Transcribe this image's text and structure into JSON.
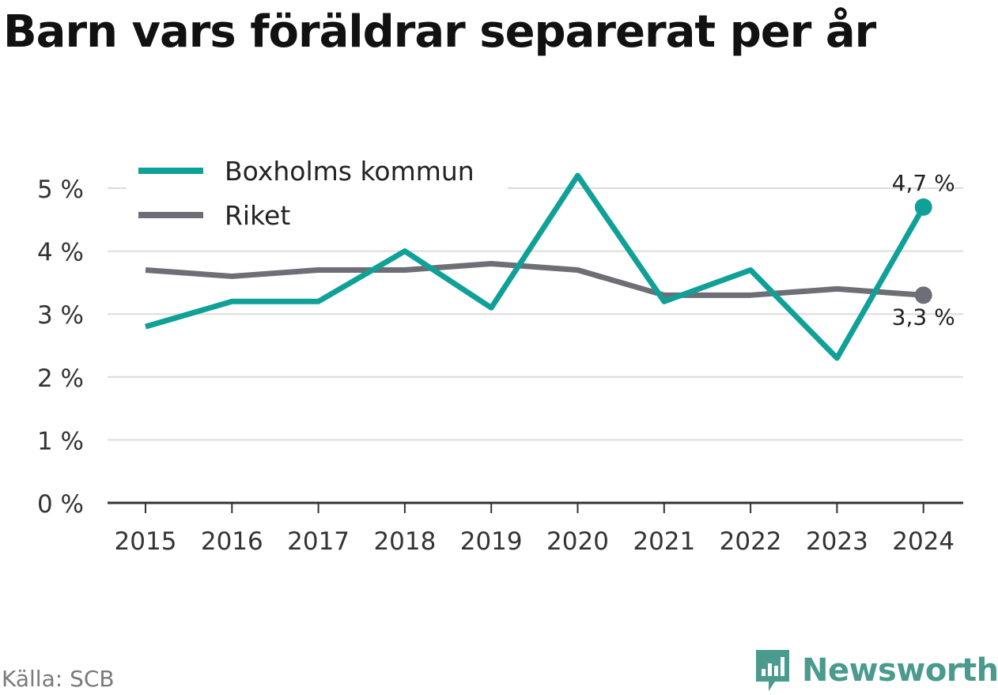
{
  "title": "Barn vars föräldrar separerat per år",
  "source": "Källa: SCB",
  "brand": {
    "name": "Newsworthy",
    "icon": "newsworthy-logo-icon",
    "color": "#4b9a8e"
  },
  "chart_data": {
    "type": "line",
    "x": [
      "2015",
      "2016",
      "2017",
      "2018",
      "2019",
      "2020",
      "2021",
      "2022",
      "2023",
      "2024"
    ],
    "series": [
      {
        "name": "Boxholms kommun",
        "color": "#0fa197",
        "values": [
          2.8,
          3.2,
          3.2,
          4.0,
          3.1,
          5.2,
          3.2,
          3.7,
          2.3,
          4.7
        ],
        "end_label": "4,7 %"
      },
      {
        "name": "Riket",
        "color": "#6e6e76",
        "values": [
          3.7,
          3.6,
          3.7,
          3.7,
          3.8,
          3.7,
          3.3,
          3.3,
          3.4,
          3.3
        ],
        "end_label": "3,3 %"
      }
    ],
    "yticks": [
      0,
      1,
      2,
      3,
      4,
      5
    ],
    "ytick_labels": [
      "0 %",
      "1 %",
      "2 %",
      "3 %",
      "4 %",
      "5 %"
    ],
    "ylim": [
      0,
      5.3
    ],
    "grid": true,
    "legend": "top-left"
  }
}
